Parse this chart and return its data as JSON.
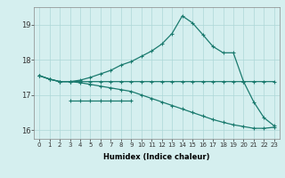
{
  "xlabel": "Humidex (Indice chaleur)",
  "background_color": "#d5efef",
  "line_color": "#1a7a6e",
  "grid_color": "#add8d8",
  "xlim": [
    -0.5,
    23.5
  ],
  "ylim": [
    15.75,
    19.5
  ],
  "yticks": [
    16,
    17,
    18,
    19
  ],
  "xticks": [
    0,
    1,
    2,
    3,
    4,
    5,
    6,
    7,
    8,
    9,
    10,
    11,
    12,
    13,
    14,
    15,
    16,
    17,
    18,
    19,
    20,
    21,
    22,
    23
  ],
  "line1_x": [
    0,
    1,
    2,
    3,
    4,
    5,
    6,
    7,
    8,
    9,
    10,
    11,
    12,
    13,
    14,
    15,
    16,
    17,
    18,
    19,
    20,
    21,
    22,
    23
  ],
  "line1_y": [
    17.55,
    17.45,
    17.38,
    17.38,
    17.38,
    17.38,
    17.38,
    17.38,
    17.38,
    17.38,
    17.38,
    17.38,
    17.38,
    17.38,
    17.38,
    17.38,
    17.38,
    17.38,
    17.38,
    17.38,
    17.38,
    17.38,
    17.38,
    17.38
  ],
  "line2_x": [
    3,
    4,
    5,
    6,
    7,
    8,
    9
  ],
  "line2_y": [
    16.85,
    16.85,
    16.85,
    16.85,
    16.85,
    16.85,
    16.85
  ],
  "line3_x": [
    0,
    1,
    2,
    3,
    4,
    5,
    6,
    7,
    8,
    9,
    10,
    11,
    12,
    13,
    14,
    15,
    16,
    17,
    18,
    19,
    20,
    21,
    22,
    23
  ],
  "line3_y": [
    17.55,
    17.45,
    17.38,
    17.38,
    17.42,
    17.5,
    17.6,
    17.7,
    17.85,
    17.95,
    18.1,
    18.25,
    18.45,
    18.75,
    19.25,
    19.05,
    18.72,
    18.38,
    18.2,
    18.2,
    17.38,
    16.8,
    16.35,
    16.12
  ],
  "line4_x": [
    0,
    1,
    2,
    3,
    4,
    5,
    6,
    7,
    8,
    9,
    10,
    11,
    12,
    13,
    14,
    15,
    16,
    17,
    18,
    19,
    20,
    21,
    22,
    23
  ],
  "line4_y": [
    17.55,
    17.45,
    17.38,
    17.38,
    17.35,
    17.3,
    17.25,
    17.2,
    17.15,
    17.1,
    17.0,
    16.9,
    16.8,
    16.7,
    16.6,
    16.5,
    16.4,
    16.3,
    16.22,
    16.15,
    16.1,
    16.05,
    16.05,
    16.08
  ]
}
